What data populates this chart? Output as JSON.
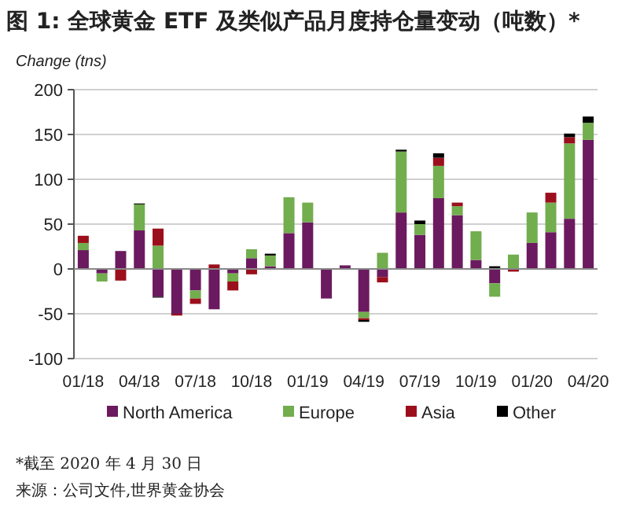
{
  "chart_data": {
    "type": "bar",
    "title": "图 1: 全球黄金 ETF 及类似产品月度持仓量变动（吨数）*",
    "ylabel": "Change (tns)",
    "categories": [
      "01/18",
      null,
      null,
      "04/18",
      null,
      null,
      "07/18",
      null,
      null,
      "10/18",
      null,
      null,
      "01/19",
      null,
      null,
      "04/19",
      null,
      null,
      "07/19",
      null,
      null,
      "10/19",
      null,
      null,
      "01/20",
      null,
      null,
      "04/20"
    ],
    "stacked": true,
    "series": [
      {
        "name": "North America",
        "color": "#6b1a5f",
        "values": [
          21,
          -5,
          20,
          43,
          -31,
          -50,
          -24,
          -45,
          -5,
          12,
          3,
          40,
          52,
          -33,
          4,
          -48,
          -9,
          63,
          38,
          79,
          60,
          10,
          -16,
          0,
          29,
          41,
          56,
          144
        ]
      },
      {
        "name": "Europe",
        "color": "#72ad4e",
        "values": [
          8,
          -9,
          0,
          29,
          26,
          0,
          -9,
          0,
          -9,
          10,
          12,
          40,
          22,
          0,
          0,
          -7,
          18,
          68,
          12,
          36,
          10,
          32,
          -15,
          16,
          34,
          33,
          84,
          19
        ]
      },
      {
        "name": "Asia",
        "color": "#9b0f1c",
        "values": [
          8,
          0,
          -13,
          0,
          19,
          -2,
          -6,
          5,
          -10,
          -6,
          0,
          0,
          0,
          0,
          0,
          -2,
          -6,
          0,
          0,
          9,
          4,
          0,
          0,
          -3,
          0,
          11,
          7,
          0
        ]
      },
      {
        "name": "Other",
        "color": "#000000",
        "values": [
          0,
          0,
          0,
          1,
          -1,
          0,
          0,
          0,
          0,
          0,
          2,
          0,
          0,
          0,
          0,
          -2,
          0,
          2,
          4,
          5,
          0,
          0,
          3,
          0,
          0,
          0,
          4,
          7
        ]
      }
    ],
    "ylim": [
      -100,
      200
    ],
    "yticks": [
      -100,
      -50,
      0,
      50,
      100,
      150,
      200
    ],
    "grid": "y",
    "legend": "bottom",
    "annotations": [
      "*截至 2020 年 4 月 30 日",
      "来源：公司文件,世界黄金协会"
    ]
  }
}
